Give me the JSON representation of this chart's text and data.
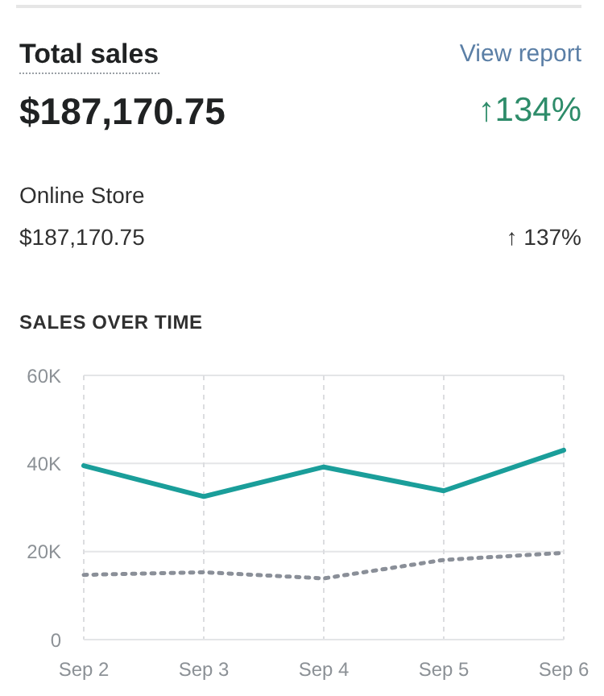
{
  "chart_data": {
    "type": "line",
    "title": "Total sales",
    "subtitle": "SALES OVER TIME",
    "annotations": [
      "$187,170.75",
      "↑134%",
      "View report",
      "Online Store",
      "$187,170.75",
      "↑ 137%"
    ],
    "categories": [
      "Sep 2",
      "Sep 3",
      "Sep 4",
      "Sep 5",
      "Sep 6"
    ],
    "series": [
      {
        "color": "#1a9e9a",
        "values": [
          39500,
          32500,
          39200,
          33800,
          43000
        ],
        "line_style": "solid"
      },
      {
        "color": "#8a8f98",
        "values": [
          14700,
          15300,
          13900,
          18100,
          19700
        ],
        "line_style": "dotted"
      }
    ],
    "ylim": [
      0,
      60000
    ],
    "yticks": [
      {
        "value": 0,
        "label": "0"
      },
      {
        "value": 20000,
        "label": "20K"
      },
      {
        "value": 40000,
        "label": "40K"
      },
      {
        "value": 60000,
        "label": "60K"
      }
    ],
    "grid": true,
    "marker": "none"
  }
}
